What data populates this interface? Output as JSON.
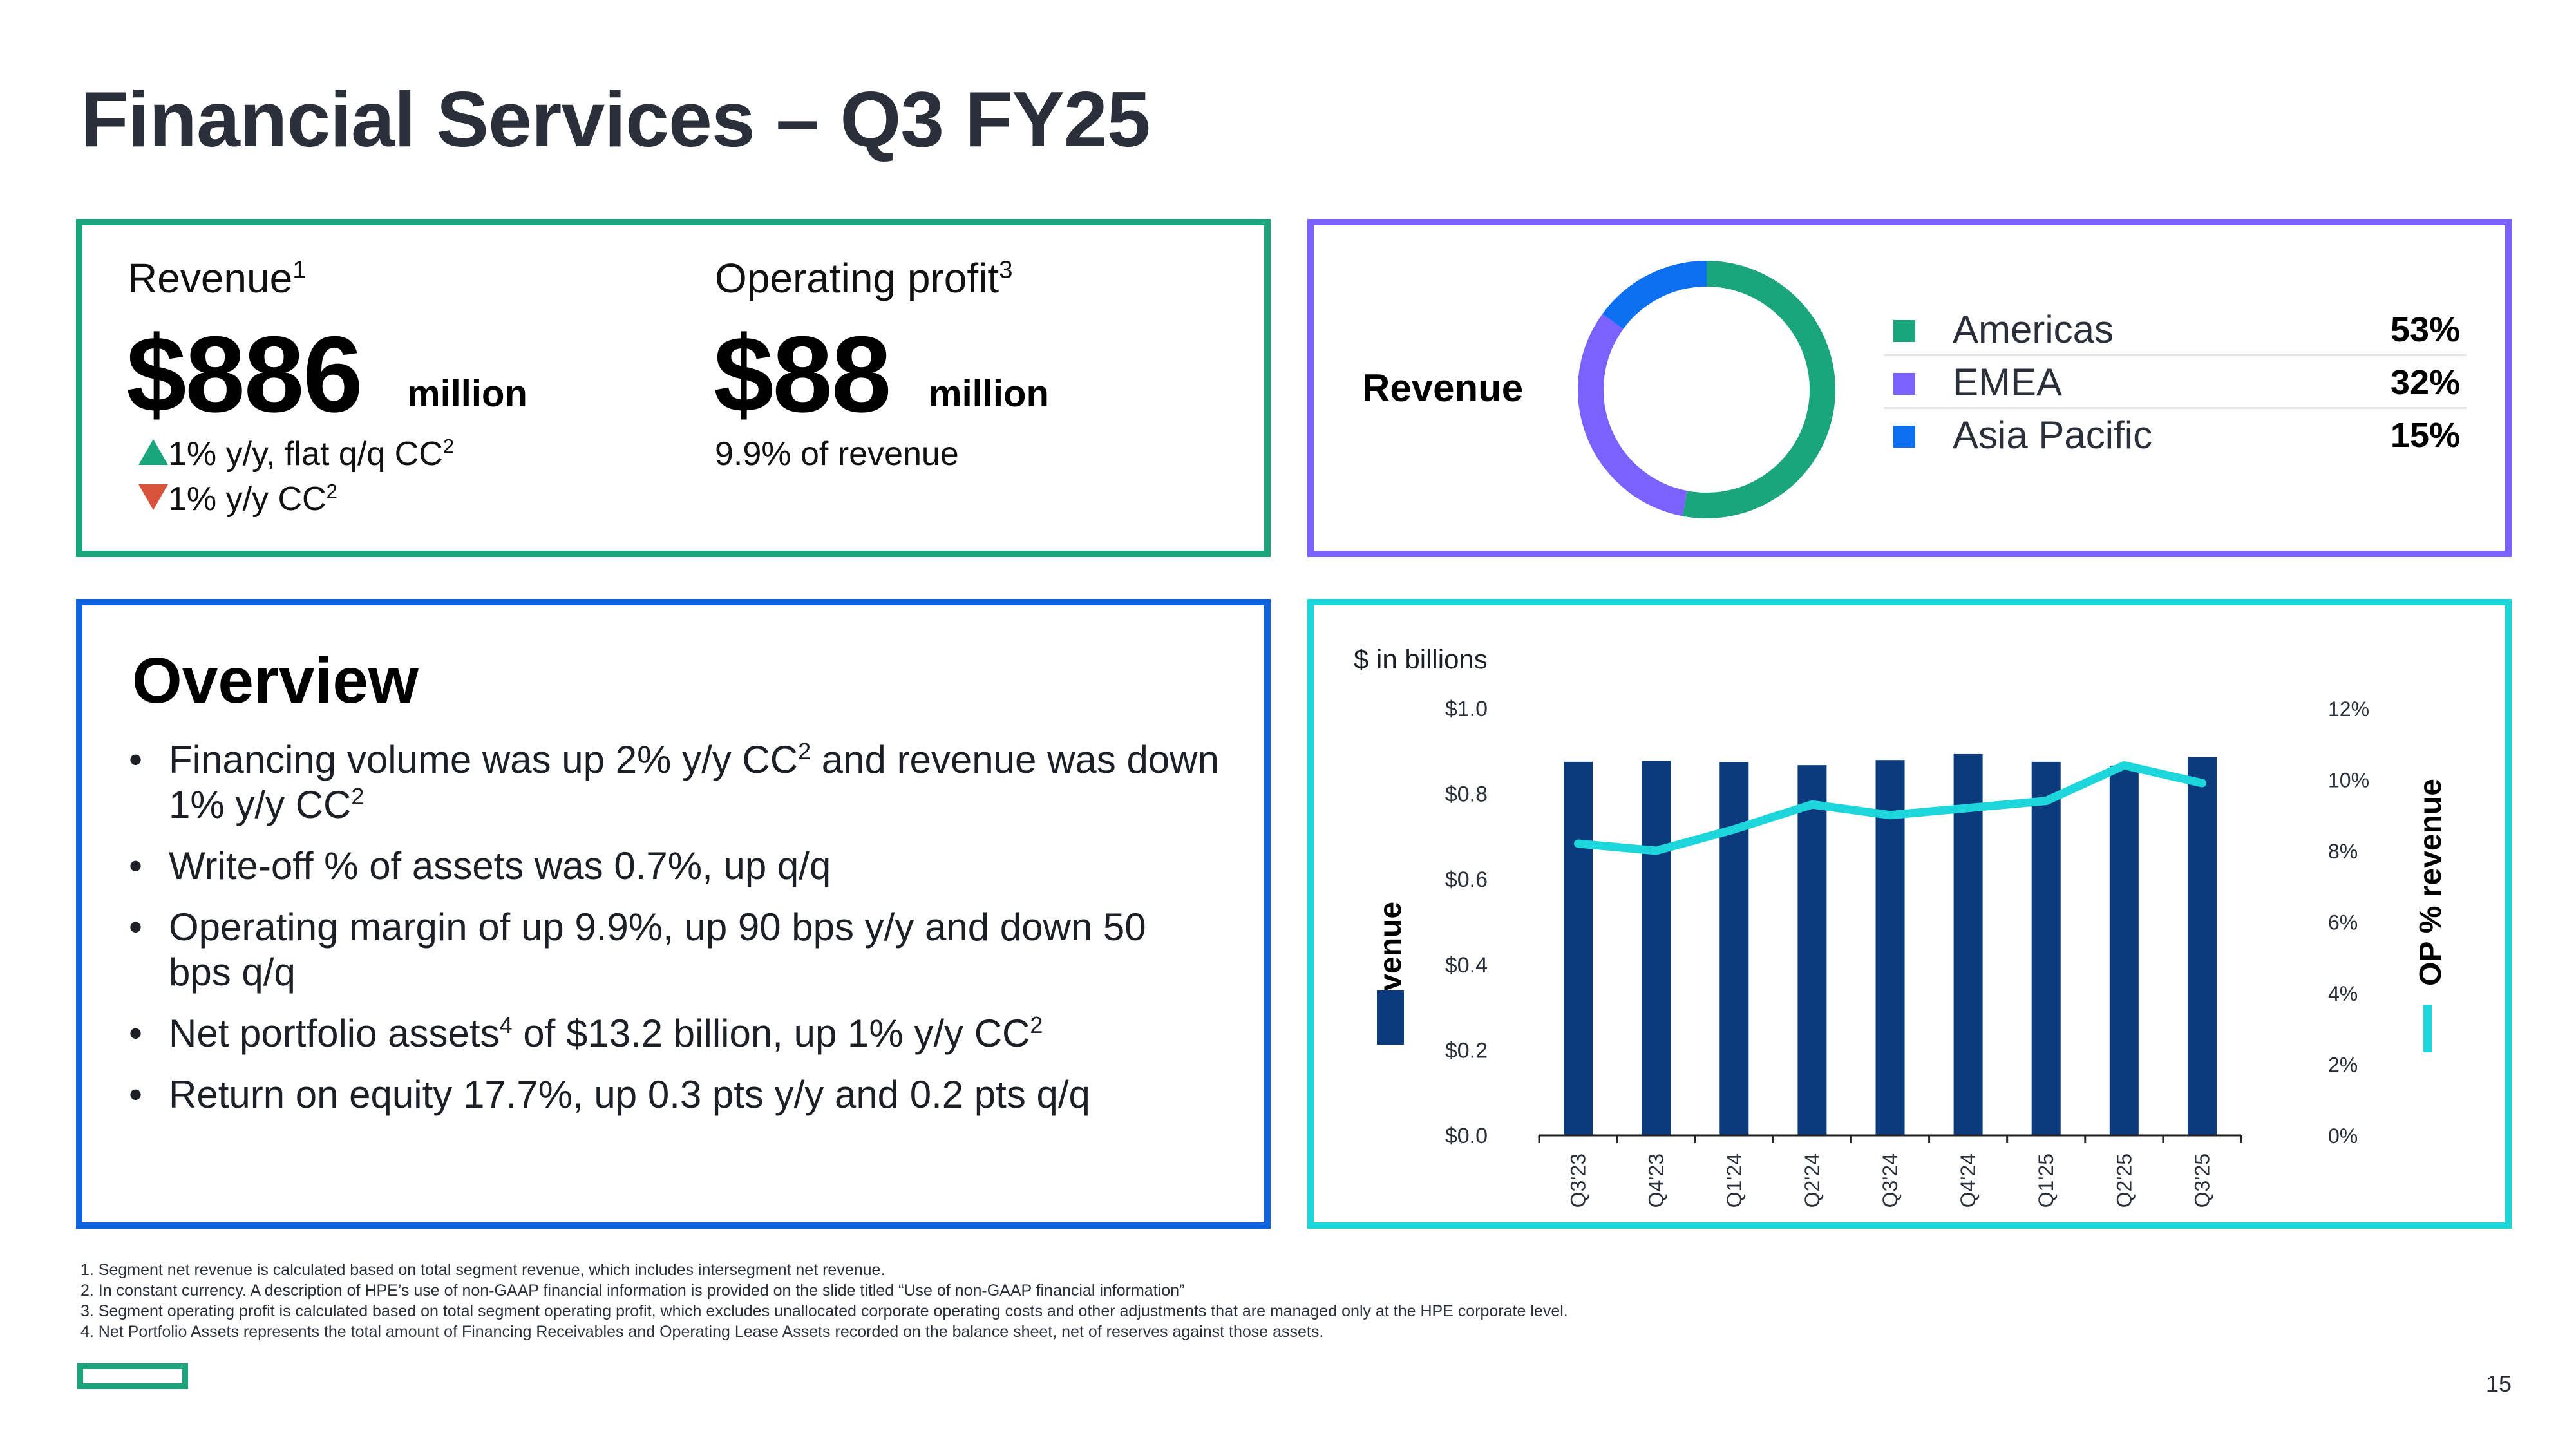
{
  "slide": {
    "title": "Financial Services – Q3 FY25",
    "page_number": "15"
  },
  "kpis": {
    "revenue": {
      "label": "Revenue",
      "footnote_ref": "1",
      "value": "$886",
      "unit": "million",
      "line1": "1% y/y, flat q/q CC",
      "line1_ref": "2",
      "line1_trend": "up",
      "line2": "1% y/y CC",
      "line2_ref": "2",
      "line2_trend": "down"
    },
    "operating_profit": {
      "label": "Operating profit",
      "footnote_ref": "3",
      "value": "$88",
      "unit": "million",
      "line1": "9.9% of revenue"
    }
  },
  "revenue_mix": {
    "label": "Revenue",
    "items": [
      {
        "name": "Americas",
        "value": "53%",
        "color": "#1aa57d"
      },
      {
        "name": "EMEA",
        "value": "32%",
        "color": "#7b61ff"
      },
      {
        "name": "Asia Pacific",
        "value": "15%",
        "color": "#0d6ff2"
      }
    ]
  },
  "overview": {
    "title": "Overview",
    "bullets": [
      {
        "parts": [
          "Financing volume was up 2% y/y CC",
          "2",
          " and revenue was down 1% y/y CC",
          "2"
        ]
      },
      {
        "parts": [
          "Write-off % of assets was 0.7%, up q/q"
        ]
      },
      {
        "parts": [
          "Operating margin of up 9.9%, up 90 bps y/y and down 50 bps q/q"
        ]
      },
      {
        "parts": [
          "Net portfolio assets",
          "4",
          " of $13.2 billion, up 1% y/y CC",
          "2"
        ]
      },
      {
        "parts": [
          "Return on equity 17.7%, up 0.3 pts y/y and 0.2 pts q/q"
        ]
      }
    ]
  },
  "chart_data": [
    {
      "type": "pie",
      "categories": [
        "Americas",
        "EMEA",
        "Asia Pacific"
      ],
      "values": [
        53,
        32,
        15
      ],
      "colors": [
        "#1aa57d",
        "#7b61ff",
        "#0d6ff2"
      ],
      "title": "Revenue",
      "style": "donut"
    },
    {
      "type": "bar",
      "unit_note": "$ in billions",
      "categories": [
        "Q3'23",
        "Q4'23",
        "Q1'24",
        "Q2'24",
        "Q3'24",
        "Q4'24",
        "Q1'25",
        "Q2'25",
        "Q3'25"
      ],
      "series": [
        {
          "name": "Revenue",
          "type": "bar",
          "axis": "left",
          "color": "#0b3a7d",
          "values": [
            0.875,
            0.877,
            0.874,
            0.867,
            0.879,
            0.893,
            0.875,
            0.866,
            0.886
          ]
        },
        {
          "name": "OP % revenue",
          "type": "line",
          "axis": "right",
          "color": "#1dd6dc",
          "values": [
            8.2,
            8.0,
            8.6,
            9.3,
            9.0,
            9.2,
            9.4,
            10.4,
            9.9
          ]
        }
      ],
      "ylim": [
        0,
        1.0
      ],
      "y_ticks": [
        "$0.0",
        "$0.2",
        "$0.4",
        "$0.6",
        "$0.8",
        "$1.0"
      ],
      "y2lim": [
        0,
        12
      ],
      "y2_ticks": [
        "0%",
        "2%",
        "4%",
        "6%",
        "8%",
        "10%",
        "12%"
      ],
      "ylabel": "Revenue",
      "y2label": "OP % revenue",
      "grid": false
    }
  ],
  "footnotes": [
    "1.  Segment net revenue is calculated based on total segment revenue, which includes intersegment net revenue.",
    "2.  In constant currency. A description of HPE’s use of non-GAAP financial information is provided on the slide titled “Use of non-GAAP financial information”",
    "3.  Segment operating profit is calculated based on total segment operating profit, which excludes unallocated corporate operating costs and other adjustments that are managed only at the HPE corporate level.",
    "4.  Net Portfolio Assets represents the total amount of Financing Receivables and Operating Lease Assets recorded on the balance sheet, net of reserves against those assets."
  ]
}
